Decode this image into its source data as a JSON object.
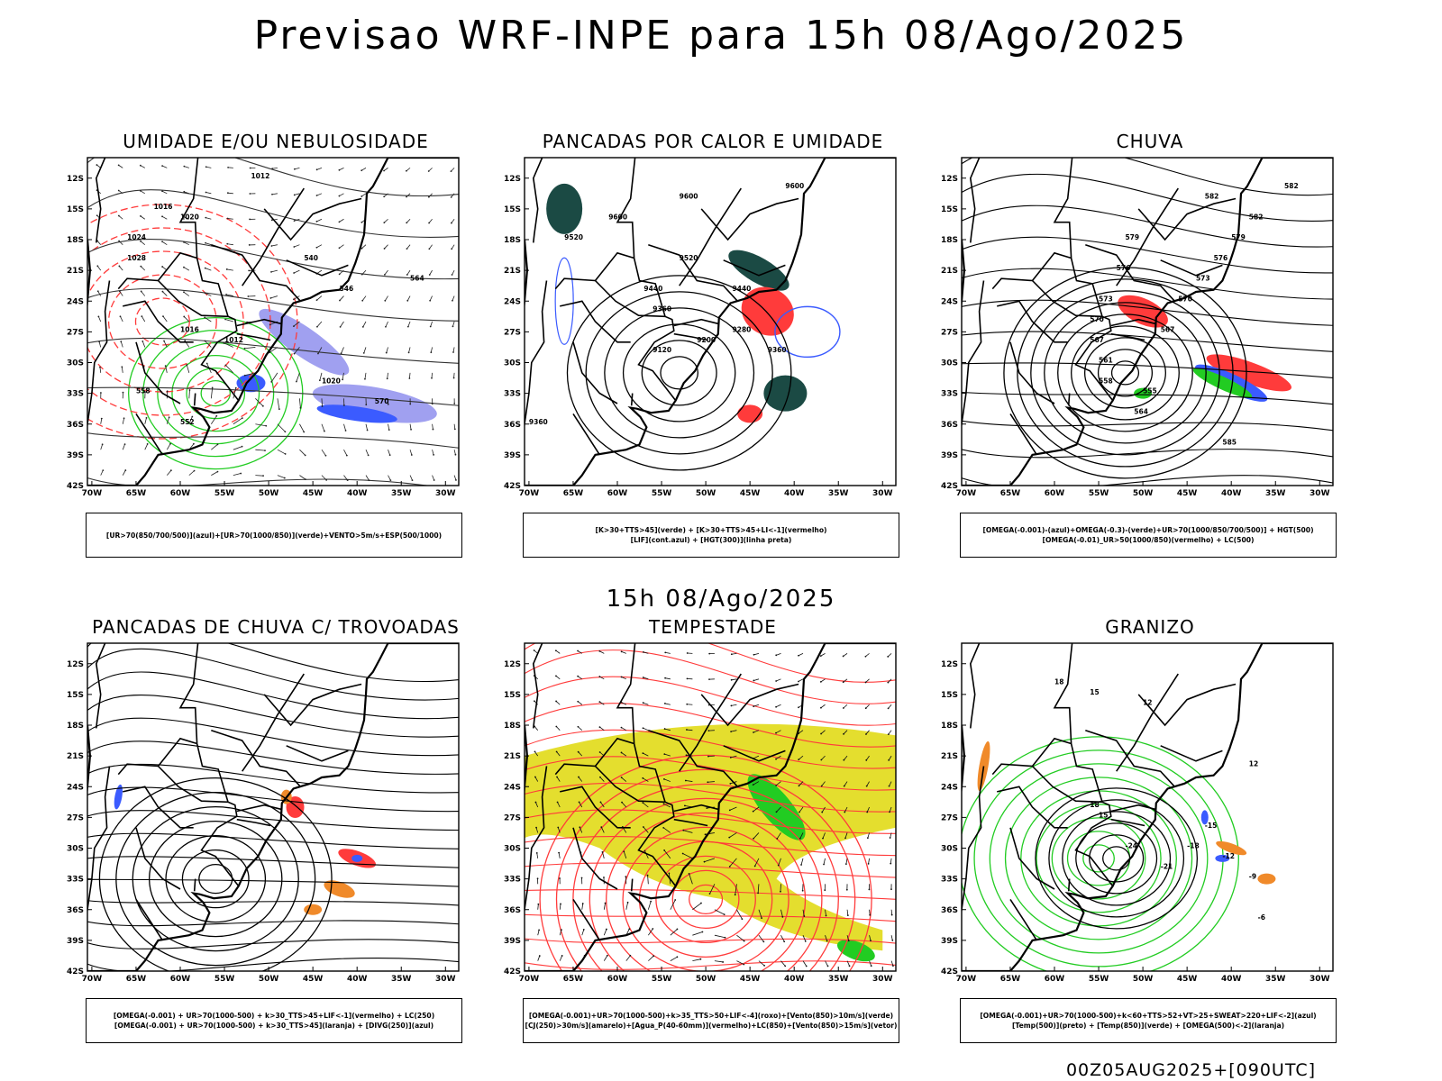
{
  "header": {
    "title": "Previsao WRF-INPE  para 15h 08/Ago/2025",
    "subtitle": "15h 08/Ago/2025",
    "footer": "00Z05AUG2025+[090UTC]"
  },
  "axes": {
    "lat_labels": [
      "12S",
      "15S",
      "18S",
      "21S",
      "24S",
      "27S",
      "30S",
      "33S",
      "36S",
      "39S",
      "42S"
    ],
    "lon_labels": [
      "70W",
      "65W",
      "60W",
      "55W",
      "50W",
      "45W",
      "40W",
      "35W",
      "30W"
    ]
  },
  "panels": [
    {
      "title": "UMIDADE E/OU NEBULOSIDADE",
      "legend": [
        "[UR>70(850/700/500)](azul)+[UR>70(1000/850)](verde)+VENTO>5m/s+ESP(500/1000)"
      ],
      "labels": [
        "1012",
        "1016",
        "1020",
        "1024",
        "1028",
        "1016",
        "1012",
        "1020",
        "570",
        "564",
        "558",
        "552",
        "546",
        "540"
      ]
    },
    {
      "title": "PANCADAS POR CALOR E UMIDADE",
      "legend": [
        "[K>30+TTS>45](verde) + [K>30+TTS>45+LI<-1](vermelho)",
        "[LIF](cont.azul) + [HGT(300)](linha preta)"
      ],
      "labels": [
        "9600",
        "9600",
        "9600",
        "9520",
        "9520",
        "9440",
        "9440",
        "9360",
        "9280",
        "9200",
        "9120",
        "9360",
        "9360"
      ]
    },
    {
      "title": "CHUVA",
      "legend": [
        "[OMEGA(-0.001)-(azul)+OMEGA(-0.3)-(verde)+UR>70(1000/850/700/500)] + HGT(500)",
        "[OMEGA(-0.01)_UR>50(1000/850)(vermelho) + LC(500)"
      ],
      "labels": [
        "582",
        "582",
        "579",
        "576",
        "573",
        "570",
        "567",
        "561",
        "558",
        "555",
        "564",
        "567",
        "570",
        "573",
        "576",
        "579",
        "582",
        "585"
      ]
    },
    {
      "title": "PANCADAS DE CHUVA C/ TROVOADAS",
      "legend": [
        "[OMEGA(-0.001) + UR>70(1000-500) + k>30_TTS>45+LIF<-1](vermelho) + LC(250)",
        "[OMEGA(-0.001) + UR>70(1000-500) + k>30_TTS>45](laranja) + [DIVG(250)](azul)"
      ],
      "labels": []
    },
    {
      "title": "TEMPESTADE",
      "legend": [
        "[OMEGA(-0.001)+UR>70(1000-500)+k>35_TTS>50+LIF<-4](roxo)+[Vento(850)>10m/s](verde)",
        "[CJ(250)>30m/s](amarelo)+[Agua_P(40-60mm)](vermelho)+LC(850)+[Vento(850)>15m/s](vetor)"
      ],
      "labels": []
    },
    {
      "title": "GRANIZO",
      "legend": [
        "[OMEGA(-0.001)+UR>70(1000-500)+k<60+TTS>52+VT>25+SWEAT>220+LIF<-2](azul)",
        "[Temp(500)](preto) + [Temp(850)](verde) + [OMEGA(500)<-2](laranja)"
      ],
      "labels": [
        "18",
        "15",
        "12",
        "18",
        "15",
        "12",
        "-24",
        "-21",
        "-18",
        "-15",
        "-12",
        "-9",
        "-6"
      ]
    }
  ],
  "chart_data": {
    "type": "map-panels",
    "title": "Previsao WRF-INPE  para 15h 08/Ago/2025",
    "lat_ticks": [
      "12S",
      "15S",
      "18S",
      "21S",
      "24S",
      "27S",
      "30S",
      "33S",
      "36S",
      "39S",
      "42S"
    ],
    "lon_ticks": [
      "70W",
      "65W",
      "60W",
      "55W",
      "50W",
      "45W",
      "40W",
      "35W",
      "30W"
    ],
    "lat_range": [
      -42,
      -10
    ],
    "lon_range": [
      -70,
      -28
    ],
    "colors": {
      "azul": "#3b5bff",
      "verde": "#22cc22",
      "vermelho": "#ff3b3b",
      "laranja": "#f08a2a",
      "amarelo": "#e4de2e",
      "azul_claro": "#a0a0f0",
      "verde_escuro": "#1b4a44",
      "preto": "#000000"
    }
  }
}
